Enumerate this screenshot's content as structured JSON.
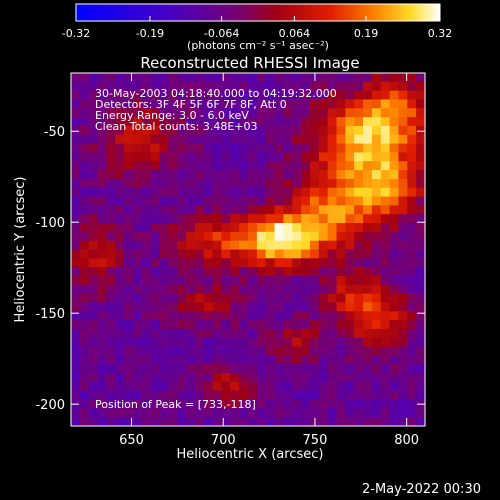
{
  "chart_data": {
    "type": "heatmap",
    "title": "Reconstructed RHESSI Image",
    "xlabel": "Heliocentric X (arcsec)",
    "ylabel": "Heliocentric Y (arcsec)",
    "xlim": [
      617,
      810
    ],
    "ylim": [
      -212,
      -18
    ],
    "x_ticks": [
      650,
      700,
      750,
      800
    ],
    "y_ticks": [
      -50,
      -100,
      -150,
      -200
    ],
    "x_tick_labels": [
      "650",
      "700",
      "750",
      "800"
    ],
    "y_tick_labels": [
      "-50",
      "-100",
      "-150",
      "-200"
    ],
    "colorbar": {
      "range": [
        -0.32,
        0.32
      ],
      "ticks": [
        -0.32,
        -0.19,
        -0.064,
        0.064,
        0.19,
        0.32
      ],
      "tick_labels": [
        "-0.32",
        "-0.19",
        "-0.064",
        "0.064",
        "0.19",
        "0.32"
      ],
      "unit_label": "(photons cm⁻² s⁻¹ asec⁻²)"
    },
    "annotations": [
      "30-May-2003 04:18:40.000 to 04:19:32.000",
      "Detectors: 3F 4F 5F 6F 7F 8F, Att 0",
      "Energy Range: 3.0 - 6.0 keV",
      "Clean     Total counts: 3.48E+03"
    ],
    "peak_label": "Position of Peak = [733,-118]",
    "peak": [
      733,
      -118
    ],
    "sources": [
      {
        "x": 733,
        "y": -110,
        "sx": 14,
        "sy": 10,
        "amp": 0.32
      },
      {
        "x": 760,
        "y": -95,
        "sx": 18,
        "sy": 14,
        "amp": 0.26
      },
      {
        "x": 772,
        "y": -55,
        "sx": 18,
        "sy": 16,
        "amp": 0.28
      },
      {
        "x": 795,
        "y": -40,
        "sx": 14,
        "sy": 14,
        "amp": 0.22
      },
      {
        "x": 790,
        "y": -80,
        "sx": 14,
        "sy": 12,
        "amp": 0.24
      },
      {
        "x": 700,
        "y": -110,
        "sx": 20,
        "sy": 10,
        "amp": 0.2
      },
      {
        "x": 655,
        "y": -55,
        "sx": 16,
        "sy": 14,
        "amp": 0.16
      },
      {
        "x": 630,
        "y": -120,
        "sx": 10,
        "sy": 14,
        "amp": 0.14
      },
      {
        "x": 690,
        "y": -145,
        "sx": 14,
        "sy": 8,
        "amp": 0.12
      },
      {
        "x": 785,
        "y": -155,
        "sx": 12,
        "sy": 12,
        "amp": 0.2
      },
      {
        "x": 770,
        "y": -140,
        "sx": 12,
        "sy": 10,
        "amp": 0.16
      },
      {
        "x": 705,
        "y": -190,
        "sx": 10,
        "sy": 8,
        "amp": 0.14
      },
      {
        "x": 740,
        "y": -165,
        "sx": 10,
        "sy": 8,
        "amp": 0.12
      }
    ],
    "background": -0.08
  },
  "footer": {
    "timestamp": "2-May-2022 00:30"
  }
}
